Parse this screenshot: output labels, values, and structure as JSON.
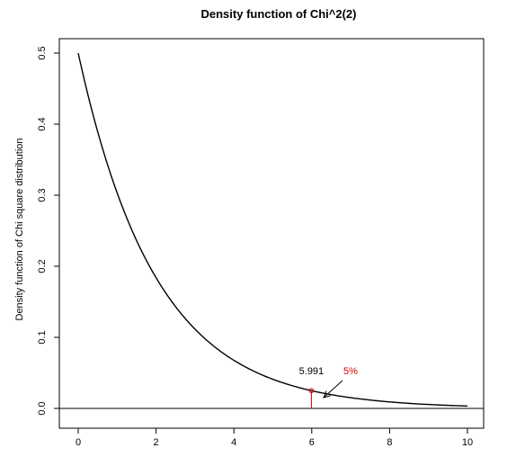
{
  "chart_data": {
    "type": "line",
    "title": "Density function of Chi^2(2)",
    "xlabel": "",
    "ylabel": "Density function of Chi square distribution",
    "xlim": [
      0,
      10
    ],
    "ylim": [
      0,
      0.5
    ],
    "x_ticks": [
      "0",
      "2",
      "4",
      "6",
      "8",
      "10"
    ],
    "y_ticks": [
      "0.0",
      "0.1",
      "0.2",
      "0.3",
      "0.4",
      "0.5"
    ],
    "series": [
      {
        "x": [
          0,
          0.5,
          1,
          1.5,
          2,
          2.5,
          3,
          3.5,
          4,
          4.5,
          5,
          5.5,
          6,
          6.5,
          7,
          7.5,
          8,
          8.5,
          9,
          9.5,
          10
        ],
        "y": [
          0.5,
          0.3894,
          0.3033,
          0.2362,
          0.1839,
          0.1433,
          0.1116,
          0.0869,
          0.0677,
          0.0527,
          0.041,
          0.032,
          0.0249,
          0.0194,
          0.0151,
          0.0118,
          0.0092,
          0.0071,
          0.0056,
          0.0043,
          0.0034
        ],
        "color": "#000000"
      }
    ],
    "critical_value": {
      "x": 5.991,
      "y": 0.025,
      "label": "5.991",
      "color": "#d40000"
    },
    "annotation": {
      "label": "5%",
      "color": "#d40000"
    },
    "grid": false,
    "zero_line": true
  }
}
